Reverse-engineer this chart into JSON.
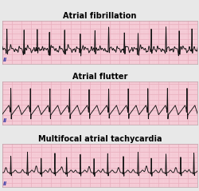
{
  "title1": "Atrial fibrillation",
  "title2": "Atrial flutter",
  "title3": "Multifocal atrial tachycardia",
  "bg_color": "#f7d0da",
  "grid_major_color": "#e8a8b8",
  "grid_minor_color": "#f0c0cc",
  "ecg_color": "#111111",
  "lead_label": "II",
  "fig_bg": "#e8e8e8",
  "title_fontsize": 7.0,
  "title_fontweight": "bold",
  "label_fontsize": 5.0,
  "label_color": "#4444aa"
}
